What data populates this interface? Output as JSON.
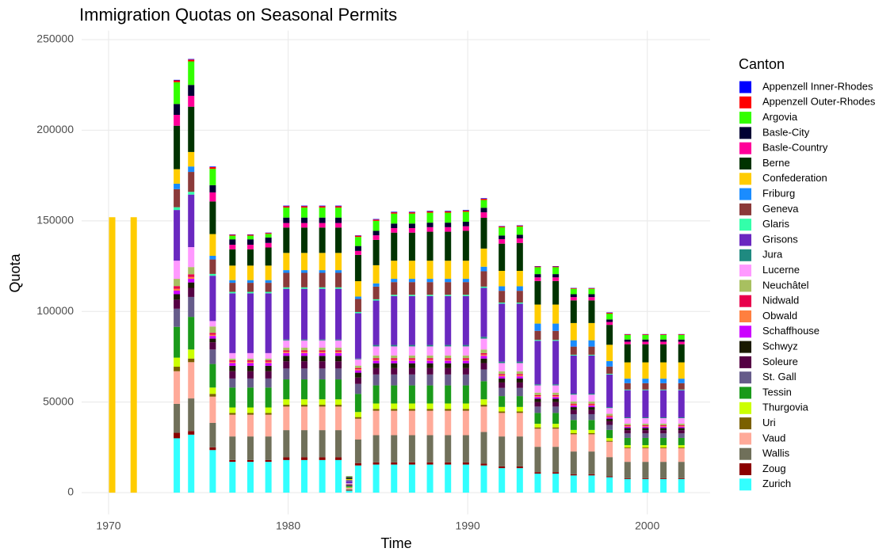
{
  "chart_data": {
    "type": "stacked_bar",
    "title": "Immigration Quotas on Seasonal Permits",
    "x_label": "Time",
    "y_label": "Quota",
    "legend_title": "Canton",
    "grid": true,
    "xlim": [
      1968.5,
      2003.5
    ],
    "xticks": [
      1970,
      1980,
      1990,
      2000
    ],
    "ylim": [
      -12000,
      255000
    ],
    "yticks": [
      0,
      50000,
      100000,
      150000,
      200000,
      250000
    ],
    "x": [
      1970.2,
      1971.4,
      1973.8,
      1974.6,
      1975.8,
      1976.9,
      1977.9,
      1978.9,
      1979.9,
      1980.9,
      1981.9,
      1982.8,
      1983.4,
      1983.9,
      1984.9,
      1985.9,
      1986.9,
      1987.9,
      1988.9,
      1989.9,
      1990.9,
      1991.9,
      1992.9,
      1993.9,
      1994.9,
      1995.9,
      1996.9,
      1997.9,
      1998.9,
      1999.9,
      2000.9,
      2001.9
    ],
    "series": [
      {
        "name": "Appenzell Inner-Rhodes",
        "color": "#0000ff",
        "values": [
          null,
          null,
          300,
          300,
          300,
          200,
          200,
          200,
          300,
          300,
          300,
          300,
          50,
          200,
          300,
          300,
          300,
          300,
          300,
          300,
          300,
          200,
          200,
          200,
          200,
          150,
          150,
          200,
          150,
          150,
          150,
          150
        ]
      },
      {
        "name": "Appenzell Outer-Rhodes",
        "color": "#ff0000",
        "values": [
          null,
          null,
          1000,
          1000,
          1000,
          500,
          500,
          500,
          800,
          800,
          800,
          800,
          50,
          700,
          700,
          700,
          700,
          700,
          700,
          700,
          700,
          500,
          500,
          400,
          400,
          350,
          350,
          500,
          350,
          350,
          350,
          350
        ]
      },
      {
        "name": "Argovia",
        "color": "#33ff00",
        "values": [
          null,
          null,
          12000,
          13000,
          9000,
          2000,
          2000,
          2000,
          5500,
          5500,
          5500,
          5500,
          300,
          5000,
          5500,
          5500,
          5500,
          5500,
          5500,
          5500,
          4300,
          4500,
          4500,
          3800,
          3800,
          3000,
          3000,
          3200,
          2500,
          2500,
          2500,
          2500
        ]
      },
      {
        "name": "Basle-City",
        "color": "#000033",
        "values": [
          null,
          null,
          6000,
          6000,
          4000,
          3000,
          3000,
          3000,
          3000,
          3000,
          3000,
          3000,
          200,
          2700,
          2500,
          2500,
          2500,
          2500,
          2500,
          2500,
          2500,
          2000,
          2000,
          1800,
          1800,
          1600,
          1600,
          1400,
          1200,
          1200,
          1200,
          1200
        ]
      },
      {
        "name": "Basle-Country",
        "color": "#ff0099",
        "values": [
          null,
          null,
          6000,
          6000,
          5000,
          2500,
          2500,
          2500,
          2500,
          2500,
          2500,
          2500,
          200,
          2200,
          2500,
          2500,
          2500,
          2500,
          2500,
          2500,
          3000,
          2500,
          2500,
          2000,
          2000,
          1800,
          1800,
          1600,
          1400,
          1400,
          1400,
          1400
        ]
      },
      {
        "name": "Berne",
        "color": "#003300",
        "values": [
          null,
          null,
          24000,
          25000,
          18000,
          9000,
          9000,
          10000,
          14000,
          14000,
          14000,
          14000,
          800,
          14500,
          14000,
          15500,
          15500,
          16000,
          16000,
          16500,
          17000,
          15000,
          15400,
          13000,
          13000,
          12500,
          12500,
          11000,
          10000,
          10000,
          10000,
          10000
        ]
      },
      {
        "name": "Confederation",
        "color": "#ffcc00",
        "values": [
          152000,
          152000,
          8000,
          8000,
          12000,
          8000,
          8000,
          8000,
          9500,
          9500,
          9500,
          9500,
          500,
          8500,
          10000,
          10000,
          10000,
          10000,
          10000,
          10000,
          10000,
          8500,
          8500,
          10500,
          10500,
          9500,
          9500,
          9000,
          9000,
          9000,
          9000,
          9000
        ]
      },
      {
        "name": "Friburg",
        "color": "#1a8cff",
        "values": [
          null,
          null,
          3000,
          3000,
          2000,
          1500,
          1500,
          1500,
          1500,
          1500,
          1500,
          1500,
          100,
          1300,
          1800,
          1800,
          1800,
          1800,
          1800,
          1800,
          2500,
          2500,
          2500,
          4000,
          4000,
          3500,
          3500,
          3000,
          2500,
          2500,
          2500,
          2500
        ]
      },
      {
        "name": "Geneva",
        "color": "#8b3a3a",
        "values": [
          null,
          null,
          10000,
          11000,
          8000,
          5000,
          5000,
          5000,
          8000,
          8000,
          8000,
          8000,
          400,
          7200,
          7000,
          7000,
          7000,
          7000,
          7000,
          7000,
          8500,
          6500,
          6500,
          5000,
          5000,
          4500,
          4500,
          4000,
          3500,
          3500,
          3500,
          3500
        ]
      },
      {
        "name": "Glaris",
        "color": "#33ffaa",
        "values": [
          null,
          null,
          1500,
          1500,
          1000,
          800,
          800,
          800,
          800,
          800,
          800,
          800,
          100,
          700,
          700,
          700,
          700,
          700,
          700,
          700,
          700,
          600,
          600,
          500,
          500,
          450,
          450,
          400,
          350,
          350,
          350,
          350
        ]
      },
      {
        "name": "Grisons",
        "color": "#6a28c0",
        "values": [
          null,
          null,
          28000,
          29000,
          25000,
          33000,
          33000,
          33000,
          28000,
          28000,
          28000,
          28000,
          1200,
          25000,
          24500,
          27000,
          27000,
          27000,
          27000,
          27000,
          27000,
          32000,
          32000,
          24000,
          24000,
          21000,
          21000,
          18000,
          15000,
          15000,
          15000,
          15000
        ]
      },
      {
        "name": "Jura",
        "color": "#1f8a80",
        "values": [
          null,
          null,
          null,
          null,
          null,
          null,
          null,
          null,
          500,
          500,
          500,
          500,
          100,
          400,
          800,
          800,
          800,
          800,
          800,
          800,
          1000,
          800,
          800,
          600,
          600,
          550,
          550,
          500,
          450,
          450,
          450,
          450
        ]
      },
      {
        "name": "Lucerne",
        "color": "#ff99ff",
        "values": [
          null,
          null,
          10000,
          11000,
          3000,
          3000,
          3000,
          3000,
          4000,
          4000,
          4000,
          4000,
          300,
          3500,
          5000,
          5000,
          5000,
          5000,
          5000,
          5000,
          6000,
          4500,
          4500,
          4000,
          4000,
          3800,
          3800,
          3200,
          3000,
          3000,
          3000,
          3000
        ]
      },
      {
        "name": "Neuchâtel",
        "color": "#a8c060",
        "values": [
          null,
          null,
          4000,
          4000,
          3500,
          1000,
          1000,
          1000,
          1500,
          1500,
          1500,
          1500,
          100,
          1300,
          1500,
          1500,
          1500,
          1500,
          1500,
          1500,
          2000,
          1500,
          1500,
          1300,
          1300,
          1200,
          1200,
          1000,
          900,
          900,
          900,
          900
        ]
      },
      {
        "name": "Nidwald",
        "color": "#e8004c",
        "values": [
          null,
          null,
          1500,
          1500,
          1000,
          800,
          800,
          800,
          800,
          800,
          800,
          800,
          100,
          700,
          800,
          800,
          800,
          800,
          800,
          800,
          800,
          700,
          700,
          600,
          600,
          550,
          550,
          500,
          450,
          450,
          450,
          450
        ]
      },
      {
        "name": "Obwald",
        "color": "#ff7f3f",
        "values": [
          null,
          null,
          1000,
          1000,
          700,
          700,
          700,
          700,
          700,
          700,
          700,
          700,
          100,
          600,
          600,
          600,
          600,
          600,
          600,
          600,
          700,
          600,
          600,
          500,
          500,
          450,
          450,
          400,
          350,
          350,
          350,
          350
        ]
      },
      {
        "name": "Schaffhouse",
        "color": "#cc00ff",
        "values": [
          null,
          null,
          2000,
          2000,
          1500,
          1500,
          1500,
          1500,
          1500,
          1500,
          1500,
          1500,
          100,
          1300,
          1400,
          1400,
          1400,
          1400,
          1400,
          1400,
          1500,
          1200,
          1200,
          1000,
          1000,
          900,
          900,
          800,
          700,
          700,
          700,
          700
        ]
      },
      {
        "name": "Schwyz",
        "color": "#1a1a00",
        "values": [
          null,
          null,
          3000,
          3000,
          2000,
          3000,
          3000,
          3000,
          3000,
          3000,
          3000,
          3000,
          200,
          2700,
          2700,
          2700,
          2700,
          2700,
          2700,
          2700,
          2500,
          2200,
          2200,
          1800,
          1800,
          1600,
          1600,
          1400,
          1200,
          1200,
          1200,
          1200
        ]
      },
      {
        "name": "Soleure",
        "color": "#550044",
        "values": [
          null,
          null,
          5000,
          5000,
          4000,
          4000,
          4000,
          4000,
          4000,
          4000,
          4000,
          4000,
          300,
          3500,
          3500,
          3500,
          3500,
          3500,
          3500,
          3500,
          3500,
          3000,
          3000,
          2500,
          2500,
          2300,
          2300,
          2000,
          1800,
          1800,
          1800,
          1800
        ]
      },
      {
        "name": "St. Gall",
        "color": "#665c8a",
        "values": [
          null,
          null,
          10000,
          11000,
          8000,
          5000,
          5000,
          5000,
          6000,
          6000,
          6000,
          6000,
          400,
          5500,
          6000,
          6000,
          6000,
          6000,
          6000,
          6000,
          6500,
          4500,
          4500,
          3500,
          3500,
          3200,
          3200,
          2800,
          2500,
          2500,
          2500,
          2500
        ]
      },
      {
        "name": "Tessin",
        "color": "#1a9a1a",
        "values": [
          null,
          null,
          17000,
          18000,
          13000,
          11000,
          11000,
          11000,
          11000,
          11000,
          11000,
          11000,
          600,
          10000,
          10000,
          10000,
          10000,
          10000,
          10000,
          10000,
          10000,
          6000,
          6000,
          6000,
          6000,
          5500,
          5500,
          4500,
          4000,
          4000,
          4000,
          4000
        ]
      },
      {
        "name": "Thurgovia",
        "color": "#ccff00",
        "values": [
          null,
          null,
          5000,
          5000,
          3500,
          3000,
          3000,
          3000,
          3000,
          3000,
          3000,
          3000,
          200,
          2800,
          3000,
          3000,
          3000,
          3000,
          3000,
          3000,
          3000,
          2500,
          2500,
          2000,
          2000,
          1800,
          1800,
          1500,
          1300,
          1300,
          1300,
          1300
        ]
      },
      {
        "name": "Uri",
        "color": "#7a6000",
        "values": [
          null,
          null,
          2500,
          2000,
          1500,
          1000,
          1000,
          1000,
          1000,
          1000,
          1000,
          1000,
          100,
          900,
          1000,
          1000,
          1000,
          1000,
          1000,
          1000,
          1000,
          800,
          800,
          700,
          700,
          600,
          600,
          500,
          400,
          400,
          400,
          400
        ]
      },
      {
        "name": "Vaud",
        "color": "#ffaa99",
        "values": [
          null,
          null,
          18000,
          20000,
          14500,
          12000,
          12000,
          12000,
          13000,
          13000,
          13000,
          13000,
          700,
          11500,
          13500,
          13500,
          13500,
          13500,
          13500,
          13500,
          14000,
          13000,
          13000,
          10000,
          10000,
          9500,
          9500,
          8500,
          7500,
          7500,
          7500,
          7500
        ]
      },
      {
        "name": "Wallis",
        "color": "#70705a",
        "values": [
          null,
          null,
          16000,
          18000,
          13500,
          13000,
          13000,
          13000,
          15000,
          15000,
          15000,
          15000,
          800,
          13000,
          15000,
          15000,
          15000,
          15000,
          15000,
          15000,
          17500,
          16500,
          16500,
          14000,
          14000,
          12500,
          12500,
          10500,
          9000,
          9000,
          9000,
          9000
        ]
      },
      {
        "name": "Zoug",
        "color": "#8b0000",
        "values": [
          null,
          null,
          3000,
          2000,
          1500,
          1000,
          1000,
          1000,
          1500,
          1500,
          1500,
          1500,
          100,
          1300,
          1200,
          1200,
          1200,
          1200,
          1200,
          1200,
          1000,
          1000,
          1000,
          800,
          800,
          700,
          700,
          600,
          500,
          500,
          500,
          500
        ]
      },
      {
        "name": "Zurich",
        "color": "#33ffff",
        "values": [
          null,
          null,
          30000,
          32000,
          23500,
          17000,
          17000,
          17000,
          18000,
          18000,
          18000,
          18000,
          1000,
          15000,
          15500,
          15500,
          15500,
          15500,
          15500,
          15500,
          15000,
          13500,
          13500,
          10500,
          10500,
          9500,
          9500,
          8500,
          7500,
          7500,
          7500,
          7500
        ]
      }
    ]
  }
}
